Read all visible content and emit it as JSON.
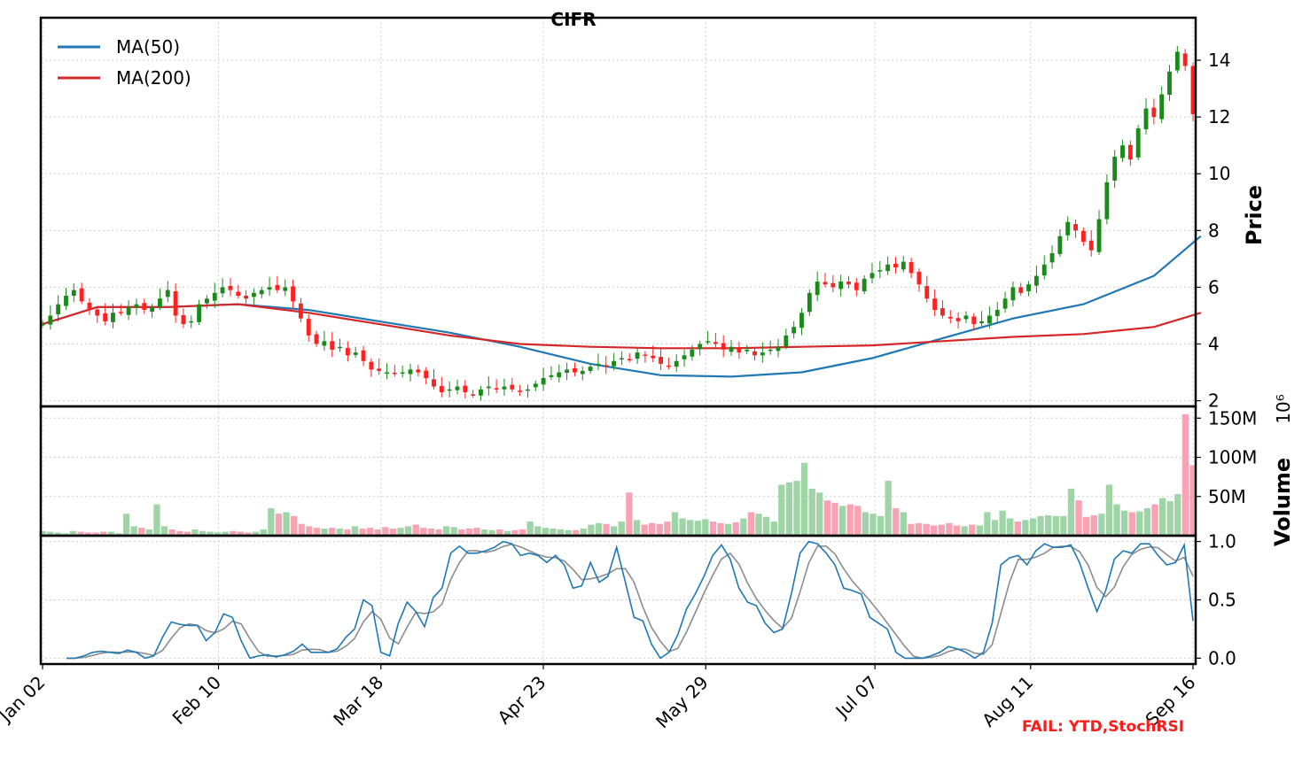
{
  "chart_data": {
    "type": "candlestick",
    "title": "CIFR",
    "colors": {
      "up": "#1a8a1a",
      "down": "#ff2020",
      "vol_up": "#9fd4a6",
      "vol_down": "#f7a3b4",
      "ma50": "#1f77b4",
      "ma200": "#d62728",
      "stoch_k": "#1f77b4",
      "stoch_d": "#8c8c8c"
    },
    "x_ticks": [
      "Jan 02",
      "Feb 10",
      "Mar 18",
      "Apr 23",
      "May 29",
      "Jul 07",
      "Aug 11",
      "Sep 16"
    ],
    "price_panel": {
      "ylabel": "Price",
      "ylim": [
        1.8,
        15.5
      ],
      "yticks": [
        2,
        4,
        6,
        8,
        10,
        12,
        14
      ],
      "legend": [
        "MA(50)",
        "MA(200)"
      ],
      "candle_closes": [
        4.7,
        5.0,
        5.4,
        5.7,
        5.9,
        5.5,
        5.2,
        5.0,
        4.8,
        5.1,
        5.1,
        5.3,
        5.4,
        5.2,
        5.3,
        5.6,
        5.9,
        5.0,
        4.7,
        4.8,
        5.4,
        5.6,
        5.8,
        6.0,
        5.9,
        5.7,
        5.6,
        5.8,
        5.9,
        6.0,
        5.9,
        6.0,
        5.5,
        4.9,
        4.3,
        4.0,
        4.1,
        3.8,
        3.9,
        3.6,
        3.7,
        3.4,
        3.1,
        3.05,
        3.0,
        2.95,
        3.0,
        3.1,
        3.0,
        2.8,
        2.5,
        2.3,
        2.4,
        2.5,
        2.3,
        2.2,
        2.4,
        2.5,
        2.4,
        2.5,
        2.4,
        2.35,
        2.4,
        2.6,
        2.8,
        2.9,
        3.0,
        3.1,
        3.0,
        3.05,
        3.2,
        3.3,
        3.2,
        3.4,
        3.5,
        3.45,
        3.7,
        3.6,
        3.5,
        3.3,
        3.2,
        3.4,
        3.6,
        3.8,
        4.0,
        4.1,
        4.0,
        3.8,
        3.9,
        3.7,
        3.8,
        3.6,
        3.7,
        3.8,
        3.9,
        4.3,
        4.6,
        5.1,
        5.8,
        6.2,
        6.1,
        6.0,
        6.2,
        6.1,
        5.9,
        6.3,
        6.5,
        6.6,
        6.8,
        6.7,
        6.9,
        6.5,
        6.1,
        5.6,
        5.2,
        5.0,
        4.9,
        4.8,
        5.0,
        4.7,
        4.8,
        5.0,
        5.2,
        5.6,
        6.0,
        5.8,
        6.1,
        6.4,
        6.8,
        7.2,
        7.8,
        8.3,
        8.0,
        7.6,
        7.3,
        8.4,
        9.7,
        10.6,
        11.0,
        10.5,
        11.6,
        12.3,
        12.0,
        12.8,
        13.6,
        14.3,
        13.8,
        12.1
      ]
    },
    "moving_averages": {
      "MA(50)": {
        "x": [
          1,
          8,
          17,
          26,
          35,
          44,
          53,
          62,
          71,
          80,
          89,
          98,
          107,
          116,
          125,
          134,
          143,
          149
        ],
        "y": [
          4.7,
          5.3,
          5.3,
          5.4,
          5.2,
          4.8,
          4.4,
          3.9,
          3.3,
          2.9,
          2.85,
          3.0,
          3.5,
          4.2,
          4.9,
          5.4,
          6.4,
          7.8
        ]
      },
      "MA(200)": {
        "x": [
          1,
          8,
          17,
          26,
          35,
          44,
          53,
          62,
          71,
          80,
          89,
          98,
          107,
          116,
          125,
          134,
          143,
          149
        ],
        "y": [
          4.7,
          5.3,
          5.3,
          5.4,
          5.1,
          4.7,
          4.3,
          4.0,
          3.9,
          3.85,
          3.85,
          3.9,
          3.95,
          4.1,
          4.25,
          4.35,
          4.6,
          5.1
        ]
      }
    },
    "volume_panel": {
      "ylabel": "Volume",
      "ylim": [
        0,
        165
      ],
      "yticks": [
        50,
        100,
        150
      ],
      "ytick_labels": [
        "50M",
        "100M",
        "150M"
      ],
      "offset_text": "10⁶",
      "values": [
        6,
        5,
        4,
        3,
        6,
        5,
        4,
        4,
        5,
        5,
        3,
        28,
        12,
        10,
        8,
        40,
        12,
        8,
        6,
        5,
        8,
        6,
        5,
        4,
        5,
        6,
        5,
        4,
        5,
        8,
        35,
        28,
        30,
        25,
        15,
        12,
        10,
        9,
        10,
        9,
        8,
        12,
        9,
        10,
        8,
        11,
        9,
        10,
        12,
        14,
        10,
        9,
        8,
        12,
        11,
        8,
        9,
        10,
        8,
        7,
        8,
        6,
        7,
        8,
        18,
        12,
        10,
        9,
        8,
        7,
        7,
        9,
        14,
        16,
        15,
        12,
        18,
        55,
        20,
        14,
        16,
        15,
        18,
        30,
        22,
        20,
        19,
        21,
        18,
        16,
        15,
        17,
        22,
        30,
        28,
        24,
        18,
        65,
        68,
        70,
        93,
        60,
        55,
        45,
        42,
        38,
        40,
        38,
        30,
        28,
        25,
        70,
        35,
        30,
        15,
        16,
        15,
        13,
        14,
        16,
        13,
        12,
        14,
        13,
        30,
        20,
        32,
        22,
        18,
        20,
        22,
        25,
        26,
        25,
        25,
        60,
        45,
        24,
        26,
        28,
        65,
        40,
        32,
        30,
        31,
        35,
        40,
        48,
        44,
        53,
        155,
        90
      ]
    },
    "stochrsi_panel": {
      "ylim": [
        -0.05,
        1.05
      ],
      "yticks": [
        0.0,
        0.5,
        1.0
      ],
      "k": [
        0.0,
        0.0,
        0.02,
        0.05,
        0.06,
        0.05,
        0.04,
        0.07,
        0.05,
        0.0,
        0.02,
        0.18,
        0.31,
        0.29,
        0.28,
        0.28,
        0.15,
        0.22,
        0.38,
        0.35,
        0.15,
        0.0,
        0.02,
        0.03,
        0.01,
        0.03,
        0.06,
        0.12,
        0.05,
        0.05,
        0.05,
        0.08,
        0.18,
        0.25,
        0.5,
        0.45,
        0.05,
        0.02,
        0.3,
        0.48,
        0.4,
        0.27,
        0.52,
        0.6,
        0.9,
        0.96,
        0.9,
        0.9,
        0.92,
        0.95,
        1.0,
        0.98,
        0.88,
        0.9,
        0.88,
        0.82,
        0.88,
        0.8,
        0.6,
        0.62,
        0.82,
        0.65,
        0.7,
        0.95,
        0.65,
        0.35,
        0.32,
        0.12,
        0.0,
        0.05,
        0.2,
        0.42,
        0.55,
        0.7,
        0.88,
        0.97,
        0.85,
        0.6,
        0.48,
        0.45,
        0.3,
        0.22,
        0.25,
        0.55,
        0.9,
        1.0,
        0.98,
        0.9,
        0.8,
        0.6,
        0.58,
        0.55,
        0.35,
        0.3,
        0.25,
        0.05,
        0.0,
        0.0,
        0.0,
        0.02,
        0.05,
        0.1,
        0.08,
        0.05,
        0.0,
        0.05,
        0.3,
        0.8,
        0.86,
        0.88,
        0.8,
        0.92,
        0.98,
        0.95,
        0.95,
        0.97,
        0.82,
        0.6,
        0.4,
        0.58,
        0.85,
        0.92,
        0.9,
        0.98,
        0.98,
        0.88,
        0.8,
        0.82,
        0.97,
        0.32
      ]
    }
  },
  "notes": {
    "fail_text": "FAIL: YTD,StochRSI"
  }
}
